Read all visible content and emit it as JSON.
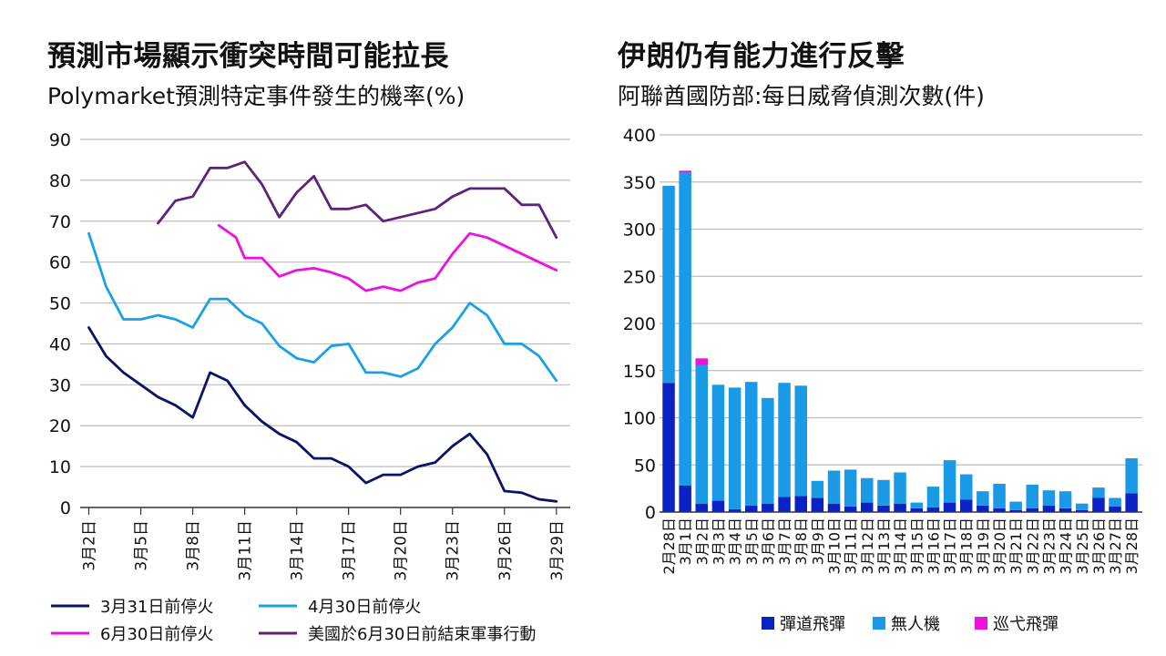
{
  "chart_data": [
    {
      "type": "line",
      "title": "預測市場顯示衝突時間可能拉長",
      "subtitle": "Polymarket預測特定事件發生的機率(%)",
      "ylim": [
        0,
        90
      ],
      "yticks": [
        0,
        10,
        20,
        30,
        40,
        50,
        60,
        70,
        80,
        90
      ],
      "x_tick_labels": [
        "3月2日",
        "3月5日",
        "3月8日",
        "3月11日",
        "3月14日",
        "3月17日",
        "3月20日",
        "3月23日",
        "3月26日",
        "3月29日"
      ],
      "x_tick_days": [
        2,
        5,
        8,
        11,
        14,
        17,
        20,
        23,
        26,
        29
      ],
      "xlim": [
        1.5,
        29.8
      ],
      "grid": true,
      "legend_position": "bottom",
      "series": [
        {
          "name": "3月31日前停火",
          "color": "#0a1466",
          "x": [
            2,
            3,
            4,
            5,
            6,
            7,
            7.5,
            8,
            8.5,
            9,
            9.5,
            10,
            10.5,
            11,
            11.5,
            12,
            13,
            14,
            15,
            16,
            17,
            18,
            19,
            20,
            21,
            22,
            22.5,
            23,
            23.5,
            24,
            24.5,
            25,
            25.5,
            26,
            26.5,
            27,
            28,
            29
          ],
          "y": [
            44,
            37,
            33,
            30,
            27,
            25,
            23.5,
            22,
            27.5,
            33,
            32,
            31,
            28,
            25,
            23,
            21,
            18,
            16,
            12,
            12,
            10,
            6,
            8,
            8,
            10,
            11,
            13,
            15,
            16.5,
            18,
            15.5,
            13,
            8.5,
            4,
            3.8,
            3.6,
            2,
            1.5
          ]
        },
        {
          "name": "4月30日前停火",
          "color": "#19a0e6",
          "x": [
            2,
            3,
            4,
            5,
            6,
            7,
            8,
            9,
            10,
            11,
            12,
            13,
            14,
            15,
            16,
            17,
            18,
            19,
            20,
            21,
            22,
            23,
            24,
            25,
            26,
            27,
            28,
            29
          ],
          "y": [
            67,
            54,
            46,
            46,
            47,
            46,
            44,
            51,
            51,
            47,
            45,
            39.5,
            36.5,
            35.5,
            39.5,
            40,
            33,
            33,
            32,
            34,
            40,
            44,
            50,
            47,
            40,
            40,
            37,
            31
          ]
        },
        {
          "name": "6月30日前停火",
          "color": "#ee11dd",
          "x": [
            9.5,
            10.5,
            11,
            12,
            13,
            14,
            15,
            16,
            17,
            18,
            19,
            20,
            21,
            22,
            23,
            24,
            25,
            26,
            27,
            28,
            29
          ],
          "y": [
            69,
            66,
            61,
            61,
            56.5,
            58,
            58.5,
            57.5,
            56,
            53,
            54,
            53,
            55,
            56,
            62,
            67,
            66,
            64,
            62,
            60,
            58
          ]
        },
        {
          "name": "美國於6月30日前結束軍事行動",
          "color": "#5c2378",
          "x": [
            6,
            7,
            8,
            9,
            10,
            11,
            12,
            13,
            14,
            15,
            16,
            17,
            18,
            19,
            20,
            21,
            22,
            23,
            24,
            25,
            26,
            27,
            28,
            29
          ],
          "y": [
            69.5,
            75,
            76,
            83,
            83,
            84.5,
            79,
            71,
            77,
            81,
            73,
            73,
            74,
            70,
            71,
            72,
            73,
            76,
            78,
            78,
            78,
            74,
            74,
            66
          ]
        }
      ]
    },
    {
      "type": "bar",
      "stacked": true,
      "title": "伊朗仍有能力進行反擊",
      "subtitle": "阿聯酋國防部:每日威脅偵測次數(件)",
      "ylim": [
        0,
        400
      ],
      "yticks": [
        0,
        50,
        100,
        150,
        200,
        250,
        300,
        350,
        400
      ],
      "grid": true,
      "legend_position": "bottom",
      "categories": [
        "2月28日",
        "3月1日",
        "3月2日",
        "3月3日",
        "3月4日",
        "3月5日",
        "3月6日",
        "3月7日",
        "3月8日",
        "3月9日",
        "3月10日",
        "3月11日",
        "3月12日",
        "3月13日",
        "3月14日",
        "3月15日",
        "3月16日",
        "3月17日",
        "3月18日",
        "3月19日",
        "3月20日",
        "3月21日",
        "3月22日",
        "3月23日",
        "3月24日",
        "3月25日",
        "3月26日",
        "3月27日",
        "3月28日"
      ],
      "series": [
        {
          "name": "彈道飛彈",
          "color": "#0a22c4",
          "values": [
            137,
            28,
            9,
            12,
            3,
            7,
            9,
            16,
            17,
            15,
            9,
            6,
            10,
            7,
            9,
            4,
            5,
            10,
            13,
            7,
            4,
            2,
            4,
            7,
            4,
            2,
            15,
            6,
            20
          ]
        },
        {
          "name": "無人機",
          "color": "#1999e6",
          "values": [
            209,
            332,
            147,
            123,
            129,
            131,
            112,
            121,
            117,
            18,
            35,
            39,
            26,
            27,
            33,
            6,
            22,
            45,
            27,
            15,
            26,
            9,
            25,
            16,
            18,
            7,
            11,
            9,
            37
          ]
        },
        {
          "name": "巡弋飛彈",
          "color": "#ee11dd",
          "values": [
            0,
            2,
            7,
            0,
            0,
            0,
            0,
            0,
            0,
            0,
            0,
            0,
            0,
            0,
            0,
            0,
            0,
            0,
            0,
            0,
            0,
            0,
            0,
            0,
            0,
            0,
            0,
            0,
            0
          ]
        }
      ]
    }
  ]
}
